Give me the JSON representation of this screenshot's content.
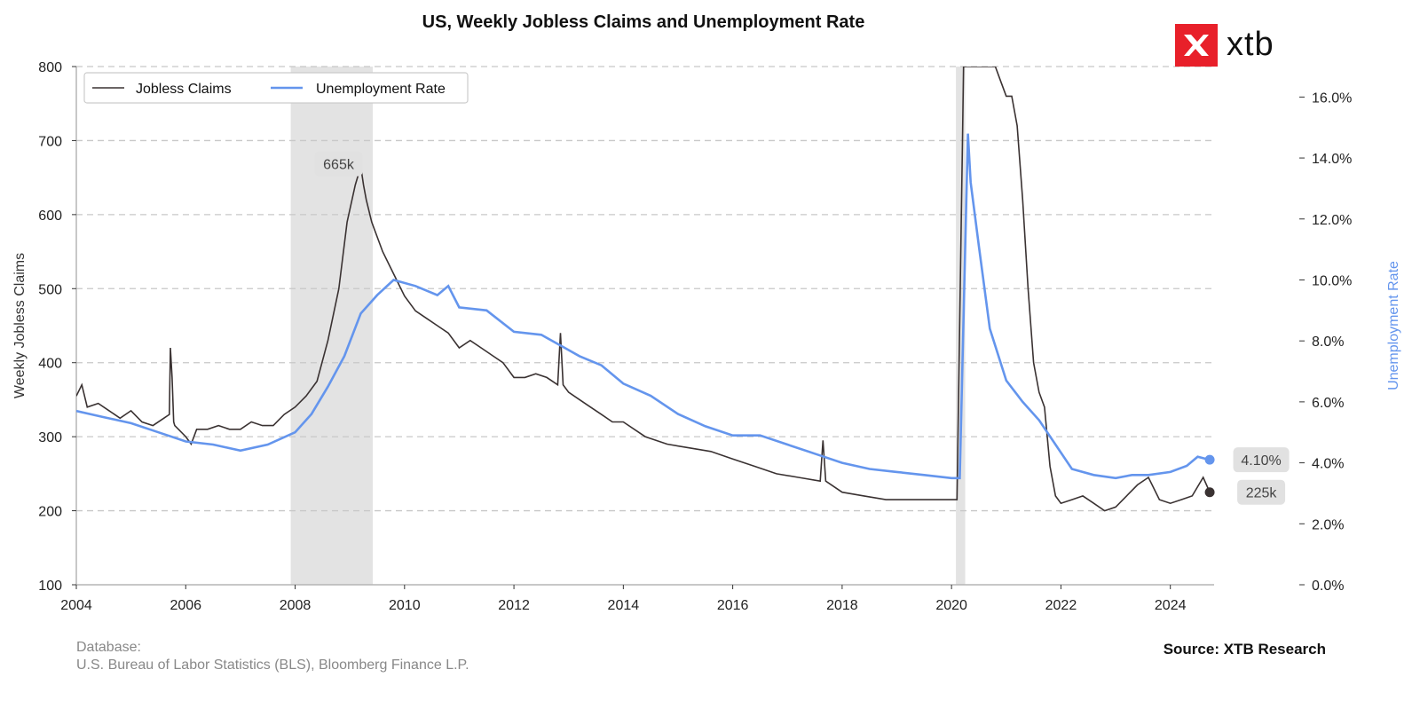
{
  "chart_data": {
    "type": "line",
    "title": "US, Weekly Jobless Claims and Unemployment Rate",
    "ylabel": "Weekly Jobless Claims",
    "y2label": "Unemployment Rate",
    "ylim": [
      100,
      800
    ],
    "y2lim": [
      0,
      17.0
    ],
    "xlim": [
      2004,
      2024.8
    ],
    "x_ticks": [
      "2004",
      "2006",
      "2008",
      "2010",
      "2012",
      "2014",
      "2016",
      "2018",
      "2020",
      "2022",
      "2024"
    ],
    "y_ticks": [
      "100",
      "200",
      "300",
      "400",
      "500",
      "600",
      "700",
      "800"
    ],
    "y2_ticks": [
      "0.0%",
      "2.0%",
      "4.0%",
      "6.0%",
      "8.0%",
      "10.0%",
      "12.0%",
      "14.0%",
      "16.0%"
    ],
    "grid": "horizontal dashed",
    "legend_position": "top-left",
    "recession_bands": [
      [
        2007.92,
        2009.42
      ],
      [
        2020.08,
        2020.25
      ]
    ],
    "series": [
      {
        "name": "Jobless Claims",
        "color": "#3a3232",
        "x": [
          2004.0,
          2004.1,
          2004.2,
          2004.4,
          2004.6,
          2004.8,
          2005.0,
          2005.2,
          2005.4,
          2005.6,
          2005.7,
          2005.72,
          2005.75,
          2005.78,
          2005.8,
          2006.0,
          2006.1,
          2006.2,
          2006.4,
          2006.6,
          2006.8,
          2007.0,
          2007.2,
          2007.4,
          2007.6,
          2007.8,
          2008.0,
          2008.2,
          2008.4,
          2008.6,
          2008.8,
          2008.95,
          2009.1,
          2009.2,
          2009.25,
          2009.3,
          2009.4,
          2009.6,
          2009.8,
          2010.0,
          2010.2,
          2010.4,
          2010.6,
          2010.8,
          2011.0,
          2011.2,
          2011.4,
          2011.6,
          2011.8,
          2012.0,
          2012.2,
          2012.4,
          2012.6,
          2012.8,
          2012.85,
          2012.9,
          2013.0,
          2013.2,
          2013.4,
          2013.6,
          2013.8,
          2014.0,
          2014.4,
          2014.8,
          2015.2,
          2015.6,
          2016.0,
          2016.4,
          2016.8,
          2017.2,
          2017.6,
          2017.65,
          2017.7,
          2018.0,
          2018.4,
          2018.8,
          2019.2,
          2019.6,
          2020.0,
          2020.1,
          2020.2,
          2020.22,
          2020.3,
          2020.45,
          2020.6,
          2020.8,
          2020.9,
          2021.0,
          2021.1,
          2021.2,
          2021.3,
          2021.4,
          2021.5,
          2021.6,
          2021.7,
          2021.8,
          2021.9,
          2022.0,
          2022.2,
          2022.4,
          2022.6,
          2022.8,
          2023.0,
          2023.2,
          2023.4,
          2023.6,
          2023.8,
          2024.0,
          2024.2,
          2024.4,
          2024.6,
          2024.72
        ],
        "values": [
          355,
          370,
          340,
          345,
          335,
          325,
          335,
          320,
          315,
          325,
          330,
          420,
          380,
          320,
          315,
          300,
          290,
          310,
          310,
          315,
          310,
          310,
          320,
          315,
          315,
          330,
          340,
          355,
          375,
          430,
          500,
          590,
          640,
          665,
          640,
          620,
          590,
          550,
          520,
          490,
          470,
          460,
          450,
          440,
          420,
          430,
          420,
          410,
          400,
          380,
          380,
          385,
          380,
          370,
          440,
          370,
          360,
          350,
          340,
          330,
          320,
          320,
          300,
          290,
          285,
          280,
          270,
          260,
          250,
          245,
          240,
          295,
          240,
          225,
          220,
          215,
          215,
          215,
          215,
          215,
          700,
          800,
          800,
          800,
          800,
          800,
          780,
          760,
          760,
          720,
          620,
          500,
          400,
          360,
          340,
          260,
          220,
          210,
          215,
          220,
          210,
          200,
          205,
          220,
          235,
          245,
          215,
          210,
          215,
          220,
          245,
          225
        ]
      },
      {
        "name": "Unemployment Rate",
        "color": "#6495ED",
        "x": [
          2004.0,
          2004.5,
          2005.0,
          2005.5,
          2006.0,
          2006.5,
          2007.0,
          2007.5,
          2008.0,
          2008.3,
          2008.6,
          2008.9,
          2009.2,
          2009.5,
          2009.8,
          2010.2,
          2010.6,
          2010.8,
          2011.0,
          2011.5,
          2012.0,
          2012.5,
          2012.9,
          2013.2,
          2013.6,
          2014.0,
          2014.5,
          2015.0,
          2015.5,
          2016.0,
          2016.5,
          2017.0,
          2017.5,
          2018.0,
          2018.5,
          2019.0,
          2019.5,
          2020.0,
          2020.15,
          2020.3,
          2020.35,
          2020.5,
          2020.7,
          2021.0,
          2021.3,
          2021.6,
          2021.9,
          2022.2,
          2022.6,
          2023.0,
          2023.3,
          2023.6,
          2024.0,
          2024.3,
          2024.5,
          2024.72
        ],
        "values": [
          5.7,
          5.5,
          5.3,
          5.0,
          4.7,
          4.6,
          4.4,
          4.6,
          5.0,
          5.6,
          6.5,
          7.5,
          8.9,
          9.5,
          10.0,
          9.8,
          9.5,
          9.8,
          9.1,
          9.0,
          8.3,
          8.2,
          7.8,
          7.5,
          7.2,
          6.6,
          6.2,
          5.6,
          5.2,
          4.9,
          4.9,
          4.6,
          4.3,
          4.0,
          3.8,
          3.7,
          3.6,
          3.5,
          3.5,
          14.8,
          13.2,
          11.1,
          8.4,
          6.7,
          6.0,
          5.4,
          4.6,
          3.8,
          3.6,
          3.5,
          3.6,
          3.6,
          3.7,
          3.9,
          4.2,
          4.1
        ]
      }
    ],
    "annotations": [
      {
        "label": "665k",
        "x": 2009.2,
        "y": 665
      },
      {
        "label": "225k",
        "x": 2024.72,
        "y": 225
      },
      {
        "label": "4.10%",
        "x": 2024.72,
        "y2": 4.1
      }
    ]
  },
  "footer": {
    "database_label": "Database:",
    "database_sources": "U.S. Bureau of Labor Statistics (BLS), Bloomberg Finance L.P.",
    "source": "Source: XTB Research"
  },
  "logo": {
    "text": "xtb",
    "brand_color": "#e8202a"
  }
}
